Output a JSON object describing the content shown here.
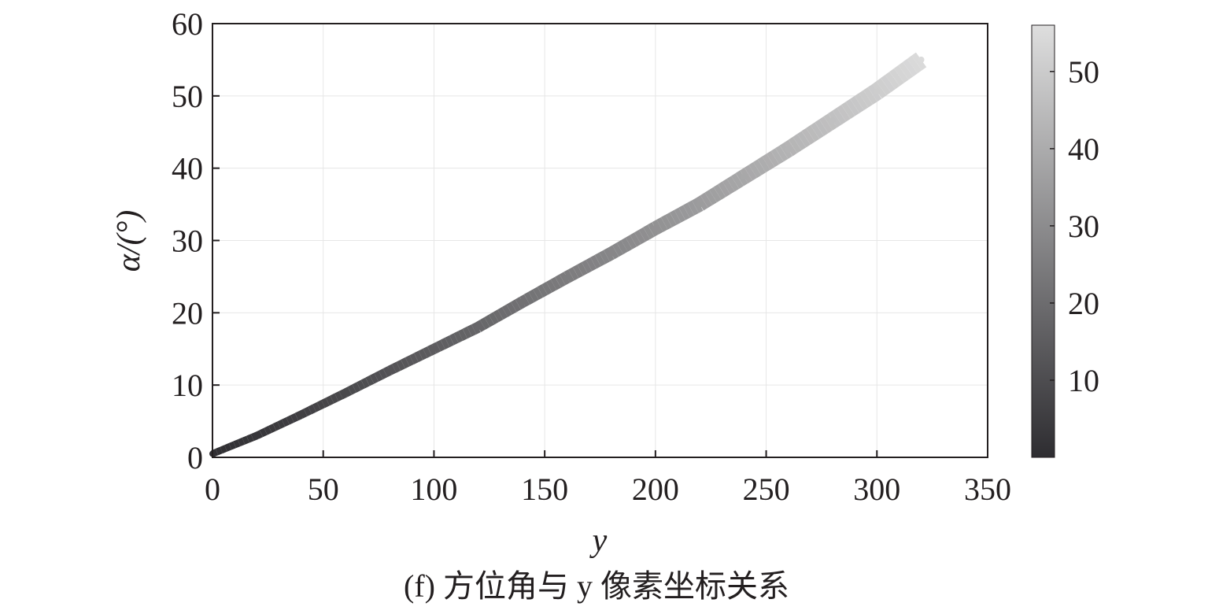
{
  "caption": "(f) 方位角与 y 像素坐标关系",
  "chart_data": {
    "type": "scatter",
    "title": "",
    "xlabel": "y",
    "ylabel": "α/(°)",
    "xlim": [
      0,
      350
    ],
    "ylim": [
      0,
      60
    ],
    "xticks": [
      0,
      50,
      100,
      150,
      200,
      250,
      300,
      350
    ],
    "yticks": [
      0,
      10,
      20,
      30,
      40,
      50,
      60
    ],
    "grid": true,
    "legend": "none",
    "colorbar": {
      "range": [
        0,
        56
      ],
      "ticks": [
        10,
        20,
        30,
        40,
        50
      ],
      "colormap": "gray",
      "low_color": "#2e2d31",
      "high_color": "#dedede"
    },
    "series": [
      {
        "x": [
          0,
          20,
          40,
          60,
          80,
          100,
          120,
          140,
          160,
          180,
          200,
          220,
          240,
          260,
          280,
          300,
          320
        ],
        "y": [
          0.5,
          3,
          5.9,
          8.9,
          12,
          15,
          18,
          21.5,
          24.9,
          28.2,
          31.7,
          35,
          38.8,
          42.6,
          46.6,
          50.6,
          55
        ]
      }
    ]
  }
}
